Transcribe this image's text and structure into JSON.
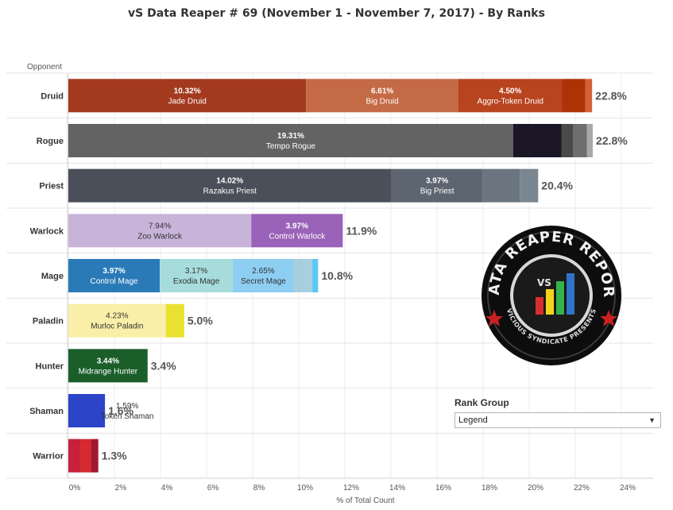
{
  "title": "vS Data Reaper #  69 (November 1 - November 7, 2017) - By Ranks",
  "rank_group": {
    "title": "Rank Group",
    "selected": "Legend",
    "arrow": "▼"
  },
  "logo": {
    "top_text": "DATA REAPER REPORT",
    "bottom_text": "VICIOUS SYNDICATE PRESENTS",
    "badge": "VS"
  },
  "chart_data": {
    "type": "bar",
    "orientation": "horizontal",
    "stacked": true,
    "title": "vS Data Reaper #  69 (November 1 - November 7, 2017) - By Ranks",
    "ylabel": "Opponent",
    "xlabel": "% of Total Count",
    "xlim": [
      0,
      24
    ],
    "xticks": [
      0,
      2,
      4,
      6,
      8,
      10,
      12,
      14,
      16,
      18,
      20,
      22,
      24
    ],
    "xtick_labels": [
      "0%",
      "2%",
      "4%",
      "6%",
      "8%",
      "10%",
      "12%",
      "14%",
      "16%",
      "18%",
      "20%",
      "22%",
      "24%"
    ],
    "grid": true,
    "categories": [
      {
        "name": "Druid",
        "total_label": "22.8%",
        "segments": [
          {
            "name": "Jade Druid",
            "value": 10.32,
            "label": "10.32%",
            "color": "#a33a1e",
            "text_color": "#ffffff"
          },
          {
            "name": "Big Druid",
            "value": 6.61,
            "label": "6.61%",
            "color": "#c46a45",
            "text_color": "#ffffff"
          },
          {
            "name": "Aggro-Token Druid",
            "value": 4.5,
            "label": "4.50%",
            "color": "#b8431f",
            "text_color": "#ffffff"
          },
          {
            "name": "",
            "value": 1.0,
            "label": "",
            "color": "#ad3205",
            "text_color": "#ffffff"
          },
          {
            "name": "",
            "value": 0.3,
            "label": "",
            "color": "#d4603a",
            "text_color": "#ffffff"
          }
        ]
      },
      {
        "name": "Rogue",
        "total_label": "22.8%",
        "segments": [
          {
            "name": "Tempo Rogue",
            "value": 19.31,
            "label": "19.31%",
            "color": "#636363",
            "text_color": "#ffffff"
          },
          {
            "name": "",
            "value": 2.1,
            "label": "",
            "color": "#1c1726",
            "text_color": "#ffffff"
          },
          {
            "name": "",
            "value": 0.5,
            "label": "",
            "color": "#4a4a4a",
            "text_color": "#ffffff"
          },
          {
            "name": "",
            "value": 0.6,
            "label": "",
            "color": "#6e6e6e",
            "text_color": "#ffffff"
          },
          {
            "name": "",
            "value": 0.25,
            "label": "",
            "color": "#a9a9a9",
            "text_color": "#ffffff"
          }
        ]
      },
      {
        "name": "Priest",
        "total_label": "20.4%",
        "segments": [
          {
            "name": "Razakus Priest",
            "value": 14.02,
            "label": "14.02%",
            "color": "#4a4f59",
            "text_color": "#ffffff"
          },
          {
            "name": "Big Priest",
            "value": 3.97,
            "label": "3.97%",
            "color": "#5c6570",
            "text_color": "#ffffff"
          },
          {
            "name": "",
            "value": 1.6,
            "label": "",
            "color": "#6a7580",
            "text_color": "#ffffff"
          },
          {
            "name": "",
            "value": 0.8,
            "label": "",
            "color": "#7a8690",
            "text_color": "#ffffff"
          }
        ]
      },
      {
        "name": "Warlock",
        "total_label": "11.9%",
        "segments": [
          {
            "name": "Zoo Warlock",
            "value": 7.94,
            "label": "7.94%",
            "color": "#c8b3d9",
            "text_color": "#333333"
          },
          {
            "name": "Control Warlock",
            "value": 3.97,
            "label": "3.97%",
            "color": "#9a62b8",
            "text_color": "#ffffff"
          }
        ]
      },
      {
        "name": "Mage",
        "total_label": "10.8%",
        "segments": [
          {
            "name": "Control Mage",
            "value": 3.97,
            "label": "3.97%",
            "color": "#2a7ab8",
            "text_color": "#ffffff"
          },
          {
            "name": "Exodia Mage",
            "value": 3.17,
            "label": "3.17%",
            "color": "#a7dcdc",
            "text_color": "#333333"
          },
          {
            "name": "Secret Mage",
            "value": 2.65,
            "label": "2.65%",
            "color": "#8dcef2",
            "text_color": "#333333"
          },
          {
            "name": "",
            "value": 0.8,
            "label": "",
            "color": "#a8cfe0",
            "text_color": "#333333"
          },
          {
            "name": "",
            "value": 0.25,
            "label": "",
            "color": "#5bc8f5",
            "text_color": "#333333"
          }
        ]
      },
      {
        "name": "Paladin",
        "total_label": "5.0%",
        "segments": [
          {
            "name": "Murloc Paladin",
            "value": 4.23,
            "label": "4.23%",
            "color": "#f9efa8",
            "text_color": "#333333"
          },
          {
            "name": "",
            "value": 0.8,
            "label": "",
            "color": "#e8e130",
            "text_color": "#333333"
          }
        ]
      },
      {
        "name": "Hunter",
        "total_label": "3.4%",
        "segments": [
          {
            "name": "Midrange Hunter",
            "value": 3.44,
            "label": "3.44%",
            "color": "#1b5e2a",
            "text_color": "#ffffff"
          }
        ]
      },
      {
        "name": "Shaman",
        "total_label": "1.6%",
        "segments": [
          {
            "name": "Token Shaman",
            "value": 1.59,
            "label": "1.59%",
            "color": "#2b44c8",
            "text_color": "#333333",
            "overflow": true
          }
        ]
      },
      {
        "name": "Warrior",
        "total_label": "1.3%",
        "segments": [
          {
            "name": "",
            "value": 0.5,
            "label": "",
            "color": "#c8203c",
            "text_color": "#ffffff"
          },
          {
            "name": "",
            "value": 0.5,
            "label": "",
            "color": "#d42a30",
            "text_color": "#ffffff"
          },
          {
            "name": "",
            "value": 0.3,
            "label": "",
            "color": "#a01830",
            "text_color": "#ffffff"
          }
        ]
      }
    ]
  }
}
